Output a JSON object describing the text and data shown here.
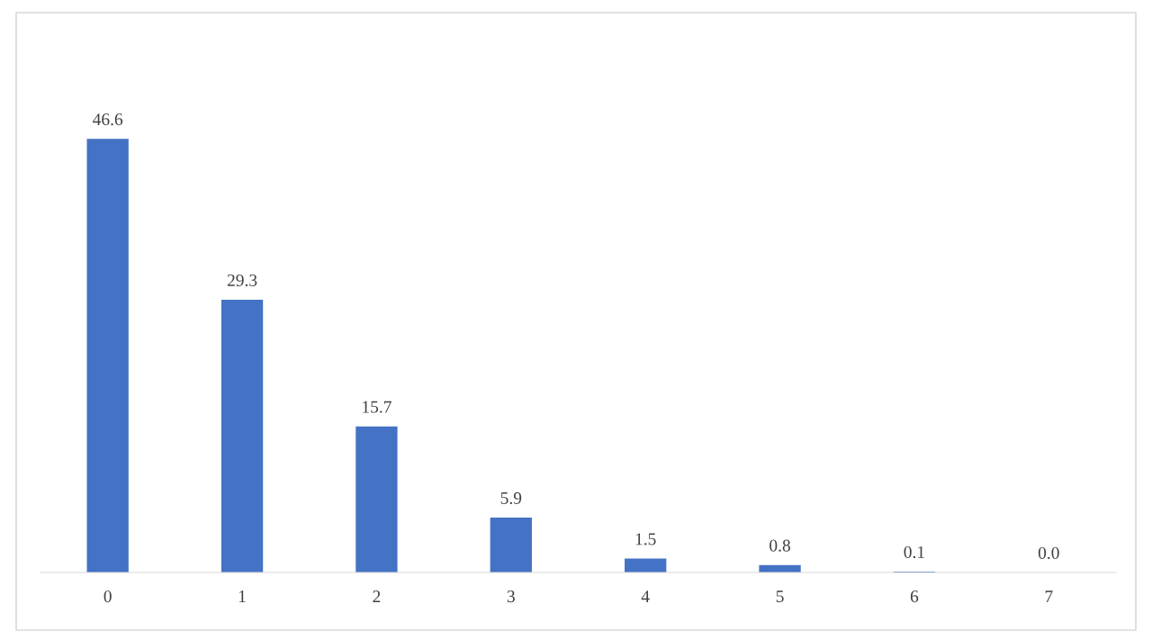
{
  "chart_data": {
    "type": "bar",
    "categories": [
      "0",
      "1",
      "2",
      "3",
      "4",
      "5",
      "6",
      "7"
    ],
    "values": [
      46.6,
      29.3,
      15.7,
      5.9,
      1.5,
      0.8,
      0.1,
      0.0
    ],
    "value_labels": [
      "46.6",
      "29.3",
      "15.7",
      "5.9",
      "1.5",
      "0.8",
      "0.1",
      "0.0"
    ],
    "color": "#4472c4",
    "grid": false,
    "legend": false,
    "tick_labels": "x"
  }
}
